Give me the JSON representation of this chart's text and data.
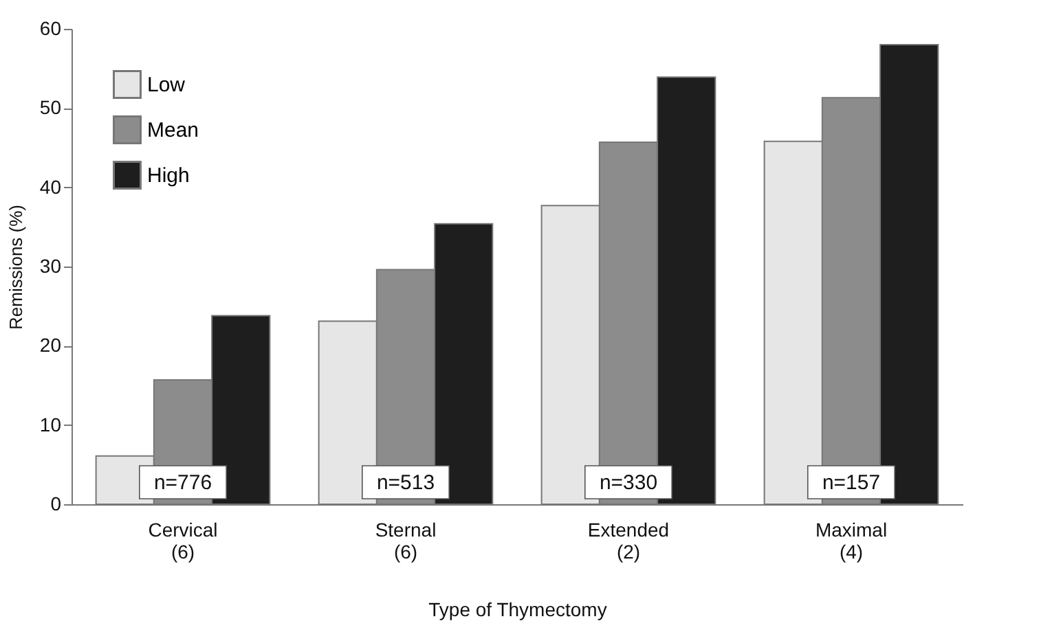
{
  "chart_data": {
    "type": "bar",
    "xlabel": "Type of Thymectomy",
    "ylabel": "Remissions (%)",
    "categories": [
      "Cervical\n(6)",
      "Sternal\n(6)",
      "Extended\n(2)",
      "Maximal\n(4)"
    ],
    "series": [
      {
        "name": "Low",
        "color": "#e6e6e6",
        "values": [
          6.1,
          23.1,
          37.7,
          45.8
        ]
      },
      {
        "name": "Mean",
        "color": "#8c8c8c",
        "values": [
          15.7,
          29.6,
          45.7,
          51.3
        ]
      },
      {
        "name": "High",
        "color": "#1e1e1e",
        "values": [
          23.8,
          35.4,
          53.9,
          58.0
        ]
      }
    ],
    "ylim": [
      0,
      60
    ],
    "yticks": [
      0,
      10,
      20,
      30,
      40,
      50,
      60
    ],
    "grid": false,
    "legend": "top left",
    "annotations": [
      "n=776",
      "n=513",
      "n=330",
      "n=157"
    ]
  }
}
